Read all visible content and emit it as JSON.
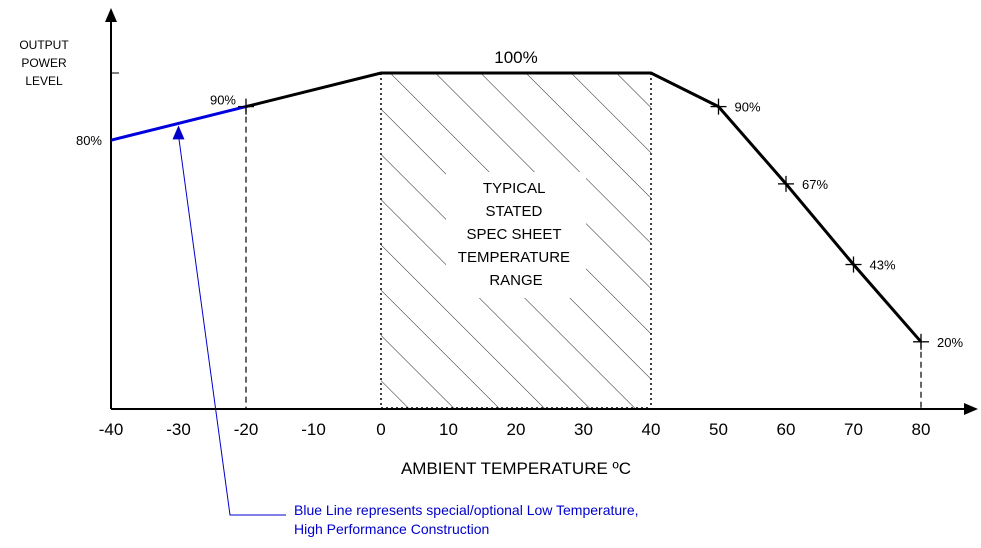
{
  "chart_data": {
    "type": "line",
    "xlabel": "AMBIENT TEMPERATURE ºC",
    "ylabel": [
      "OUTPUT",
      "POWER",
      "LEVEL"
    ],
    "x_ticks": [
      "-40",
      "-30",
      "-20",
      "-10",
      "0",
      "10",
      "20",
      "30",
      "40",
      "50",
      "60",
      "70",
      "80"
    ],
    "xlim": [
      -40,
      80
    ],
    "ylim": [
      0,
      100
    ],
    "series": [
      {
        "color": "#0000dd",
        "points": [
          {
            "x": -40,
            "y": 80,
            "label": "80%"
          },
          {
            "x": -20,
            "y": 90,
            "label": "90%"
          }
        ]
      },
      {
        "color": "#000000",
        "points": [
          {
            "x": -20,
            "y": 90,
            "label": ""
          },
          {
            "x": 0,
            "y": 100,
            "label": ""
          },
          {
            "x": 40,
            "y": 100,
            "label": ""
          },
          {
            "x": 50,
            "y": 90,
            "label": "90%"
          },
          {
            "x": 60,
            "y": 67,
            "label": "67%"
          },
          {
            "x": 70,
            "y": 43,
            "label": "43%"
          },
          {
            "x": 80,
            "y": 20,
            "label": "20%"
          }
        ]
      }
    ],
    "top_label": "100%",
    "shaded_region": {
      "x_range": [
        0,
        40
      ],
      "label_lines": [
        "TYPICAL",
        "STATED",
        "SPEC SHEET",
        "TEMPERATURE",
        "RANGE"
      ]
    },
    "annotation": {
      "lines": [
        "Blue Line represents special/optional Low Temperature,",
        "High Performance Construction"
      ],
      "points_to": {
        "x": -30,
        "y": 85
      },
      "color": "#0000cc"
    }
  }
}
